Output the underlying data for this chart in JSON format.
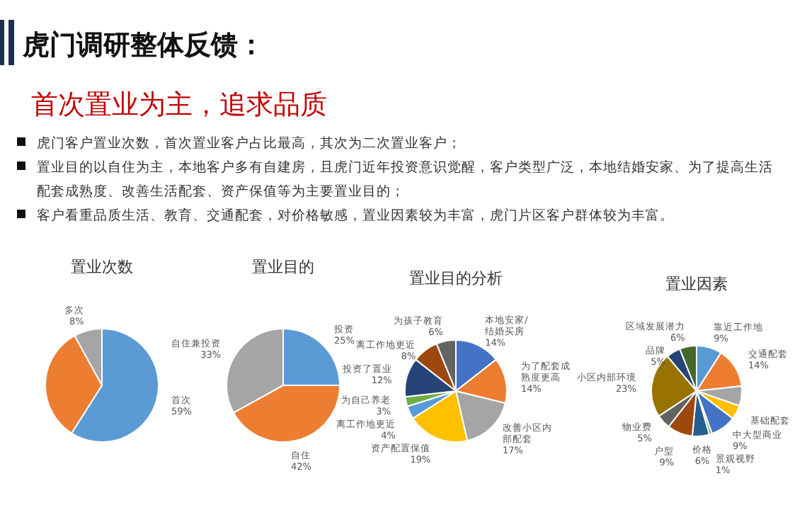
{
  "chart_data": [
    {
      "type": "other",
      "title": "虎门调研整体反馈：",
      "subtitle": "首次置业为主，追求品质",
      "annotations": [
        "虎门客户置业次数，首次置业客户占比最高，其次为二次置业客户；",
        "置业目的以自住为主，本地客户多有自建房，且虎门近年投资意识觉醒，客户类型广泛，本地结婚安家、为了提高生活配套成熟度、改善生活配套、资产保值等为主要置业目的；",
        "客户看重品质生活、教育、交通配套，对价格敏感，置业因素较为丰富，虎门片区客户群体较为丰富。"
      ]
    },
    {
      "type": "pie",
      "title": "置业次数",
      "categories": [
        "首次",
        null,
        "多次"
      ],
      "values": [
        59,
        33,
        8
      ],
      "value_labels": [
        "59%",
        null,
        "8%"
      ],
      "colors": [
        "#5b9bd5",
        "#ed7d31",
        "#a5a5a5"
      ]
    },
    {
      "type": "pie",
      "title": "置业目的",
      "categories": [
        "投资",
        "自住",
        "自住兼投资"
      ],
      "values": [
        25,
        42,
        33
      ],
      "value_labels": [
        "25%",
        "42%",
        "33%"
      ],
      "colors": [
        "#5b9bd5",
        "#ed7d31",
        "#a5a5a5"
      ]
    },
    {
      "type": "pie",
      "title": "置业目的分析",
      "categories": [
        "本地安家/结婚买房",
        "为了配套成熟度更高",
        "改善小区内部配套",
        "资产配置保值",
        "离工作地更近",
        "为自己养老",
        "投资了置业",
        "离工作地更近",
        "为孩子教育"
      ],
      "values": [
        14,
        14,
        17,
        19,
        4,
        3,
        12,
        8,
        6
      ],
      "value_labels": [
        "14%",
        "14%",
        "17%",
        "19%",
        "4%",
        "3%",
        "12%",
        "8%",
        "6%"
      ],
      "colors": [
        "#4472c4",
        "#ed7d31",
        "#a5a5a5",
        "#ffc000",
        "#5b9bd5",
        "#70ad47",
        "#264478",
        "#9e480e",
        "#636363"
      ]
    },
    {
      "type": "pie",
      "title": "置业因素",
      "categories": [
        "靠近工作地",
        "交通配套",
        null,
        "基础配套",
        "中大型商业",
        "景观视野",
        "价格",
        "户型",
        "物业费",
        "小区内部环境",
        "品牌",
        "区域发展潜力"
      ],
      "values": [
        9,
        14,
        7,
        5,
        9,
        1,
        6,
        9,
        5,
        23,
        5,
        6
      ],
      "value_labels": [
        "9%",
        "14%",
        null,
        null,
        "9%",
        "1%",
        "6%",
        "9%",
        "5%",
        "23%",
        "5%",
        "6%"
      ],
      "colors": [
        "#5b9bd5",
        "#ed7d31",
        "#a5a5a5",
        "#ffc000",
        "#4472c4",
        "#70ad47",
        "#255e91",
        "#9e480e",
        "#636363",
        "#997300",
        "#264478",
        "#43682b"
      ]
    }
  ]
}
